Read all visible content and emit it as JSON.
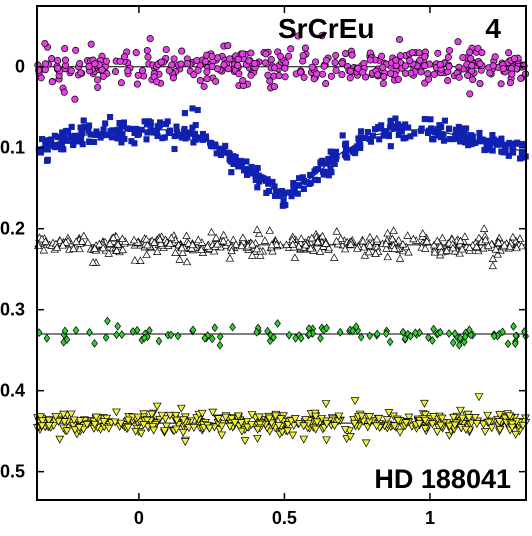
{
  "chart_data": {
    "type": "scatter",
    "title": "",
    "xlabel": "",
    "ylabel": "",
    "xlim": [
      -0.35,
      1.33
    ],
    "ylim": [
      0.535,
      -0.075
    ],
    "y_axis_inverted": true,
    "grid": false,
    "x_ticks": [
      0,
      0.5,
      1
    ],
    "x_tick_labels": [
      "0",
      "0.5",
      "1"
    ],
    "y_ticks": [
      0,
      0.1,
      0.2,
      0.3,
      0.4,
      0.5
    ],
    "y_tick_labels": [
      "0",
      "0.1",
      "0.2",
      "0.3",
      "0.4",
      "0.5"
    ],
    "annotations": {
      "group": "SrCrEu",
      "number": "4",
      "star": "HD 188041"
    },
    "series": [
      {
        "marker": "circle",
        "color": "#e040e0",
        "baseline": 0.0,
        "scatter": 0.018,
        "phase_curve": [
          [
            -0.35,
            0.0
          ],
          [
            1.33,
            0.0
          ]
        ],
        "n_points": 420
      },
      {
        "marker": "square",
        "color": "#1020b0",
        "baseline": 0.075,
        "scatter": 0.012,
        "phase_curve": [
          [
            -0.35,
            0.1
          ],
          [
            -0.2,
            0.085
          ],
          [
            0.0,
            0.078
          ],
          [
            0.1,
            0.078
          ],
          [
            0.2,
            0.085
          ],
          [
            0.3,
            0.105
          ],
          [
            0.4,
            0.135
          ],
          [
            0.5,
            0.16
          ],
          [
            0.6,
            0.135
          ],
          [
            0.7,
            0.105
          ],
          [
            0.8,
            0.085
          ],
          [
            0.9,
            0.078
          ],
          [
            1.0,
            0.078
          ],
          [
            1.1,
            0.085
          ],
          [
            1.2,
            0.095
          ],
          [
            1.33,
            0.105
          ]
        ],
        "n_points": 420
      },
      {
        "marker": "triangle-up",
        "color": "#ffffff",
        "edge_color": "#000000",
        "baseline": 0.22,
        "scatter": 0.01,
        "phase_curve": [
          [
            -0.35,
            0.22
          ],
          [
            1.33,
            0.22
          ]
        ],
        "n_points": 420
      },
      {
        "marker": "diamond",
        "color": "#30d030",
        "baseline": 0.33,
        "scatter": 0.01,
        "phase_curve": [
          [
            -0.35,
            0.33
          ],
          [
            1.33,
            0.33
          ]
        ],
        "n_points": 110
      },
      {
        "marker": "triangle-down",
        "color": "#f0f040",
        "baseline": 0.44,
        "scatter": 0.011,
        "phase_curve": [
          [
            -0.35,
            0.44
          ],
          [
            1.33,
            0.44
          ]
        ],
        "n_points": 460
      }
    ]
  }
}
